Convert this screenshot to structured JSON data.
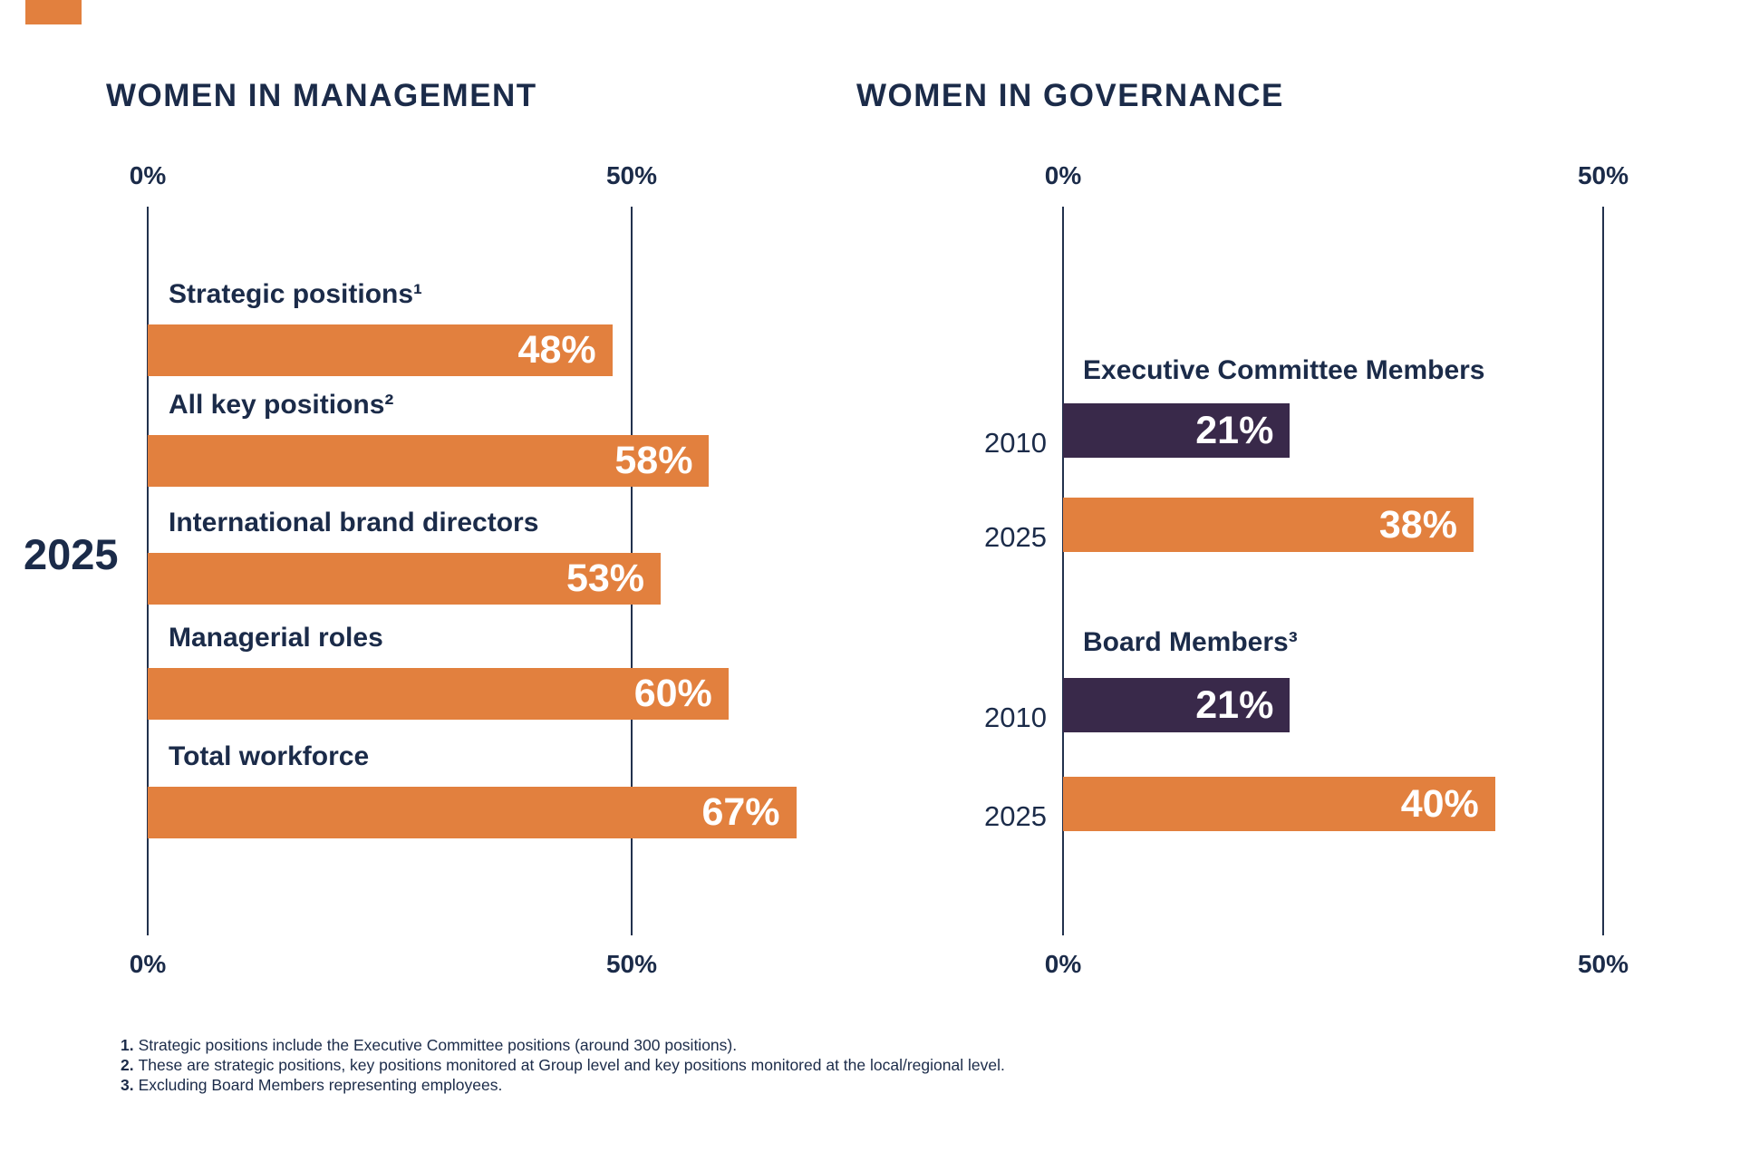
{
  "colors": {
    "orange_bar": "#E2803E",
    "purple_bar": "#39294A",
    "navy_text": "#1B2B49",
    "background": "#FFFFFF"
  },
  "chart_data": [
    {
      "type": "bar",
      "orientation": "horizontal",
      "title": "WOMEN IN MANAGEMENT",
      "year_label": "2025",
      "axis": {
        "xlim": [
          0,
          50
        ],
        "unit": "%",
        "gridlines_shown": [
          0,
          50
        ],
        "ticks": [
          {
            "value": 0,
            "label": "0%"
          },
          {
            "value": 50,
            "label": "50%"
          }
        ],
        "tick_labels_position": "top and bottom"
      },
      "rows": [
        {
          "label": "Strategic positions¹",
          "value": 48,
          "value_label": "48%",
          "color": "#E2803E"
        },
        {
          "label": "All key positions²",
          "value": 58,
          "value_label": "58%",
          "color": "#E2803E"
        },
        {
          "label": "International brand directors",
          "value": 53,
          "value_label": "53%",
          "color": "#E2803E"
        },
        {
          "label": "Managerial roles",
          "value": 60,
          "value_label": "60%",
          "color": "#E2803E"
        },
        {
          "label": "Total workforce",
          "value": 67,
          "value_label": "67%",
          "color": "#E2803E"
        }
      ]
    },
    {
      "type": "bar",
      "orientation": "horizontal",
      "title": "WOMEN IN GOVERNANCE",
      "axis": {
        "xlim": [
          0,
          50
        ],
        "unit": "%",
        "gridlines_shown": [
          0,
          50
        ],
        "ticks": [
          {
            "value": 0,
            "label": "0%"
          },
          {
            "value": 50,
            "label": "50%"
          }
        ],
        "tick_labels_position": "top and bottom"
      },
      "color_key": {
        "2010": "#39294A",
        "2025": "#E2803E"
      },
      "groups": [
        {
          "heading": "Executive Committee Members",
          "rows": [
            {
              "label": "2010",
              "value": 21,
              "value_label": "21%",
              "color": "#39294A"
            },
            {
              "label": "2025",
              "value": 38,
              "value_label": "38%",
              "color": "#E2803E"
            }
          ]
        },
        {
          "heading": "Board Members³",
          "rows": [
            {
              "label": "2010",
              "value": 21,
              "value_label": "21%",
              "color": "#39294A"
            },
            {
              "label": "2025",
              "value": 40,
              "value_label": "40%",
              "color": "#E2803E"
            }
          ]
        }
      ]
    }
  ],
  "footnotes": [
    {
      "num": "1.",
      "text": "Strategic positions include the Executive Committee positions (around 300 positions)."
    },
    {
      "num": "2.",
      "text": "These are strategic positions, key positions monitored at Group level and key positions monitored at the local/regional level."
    },
    {
      "num": "3.",
      "text": "Excluding Board Members representing employees."
    }
  ]
}
